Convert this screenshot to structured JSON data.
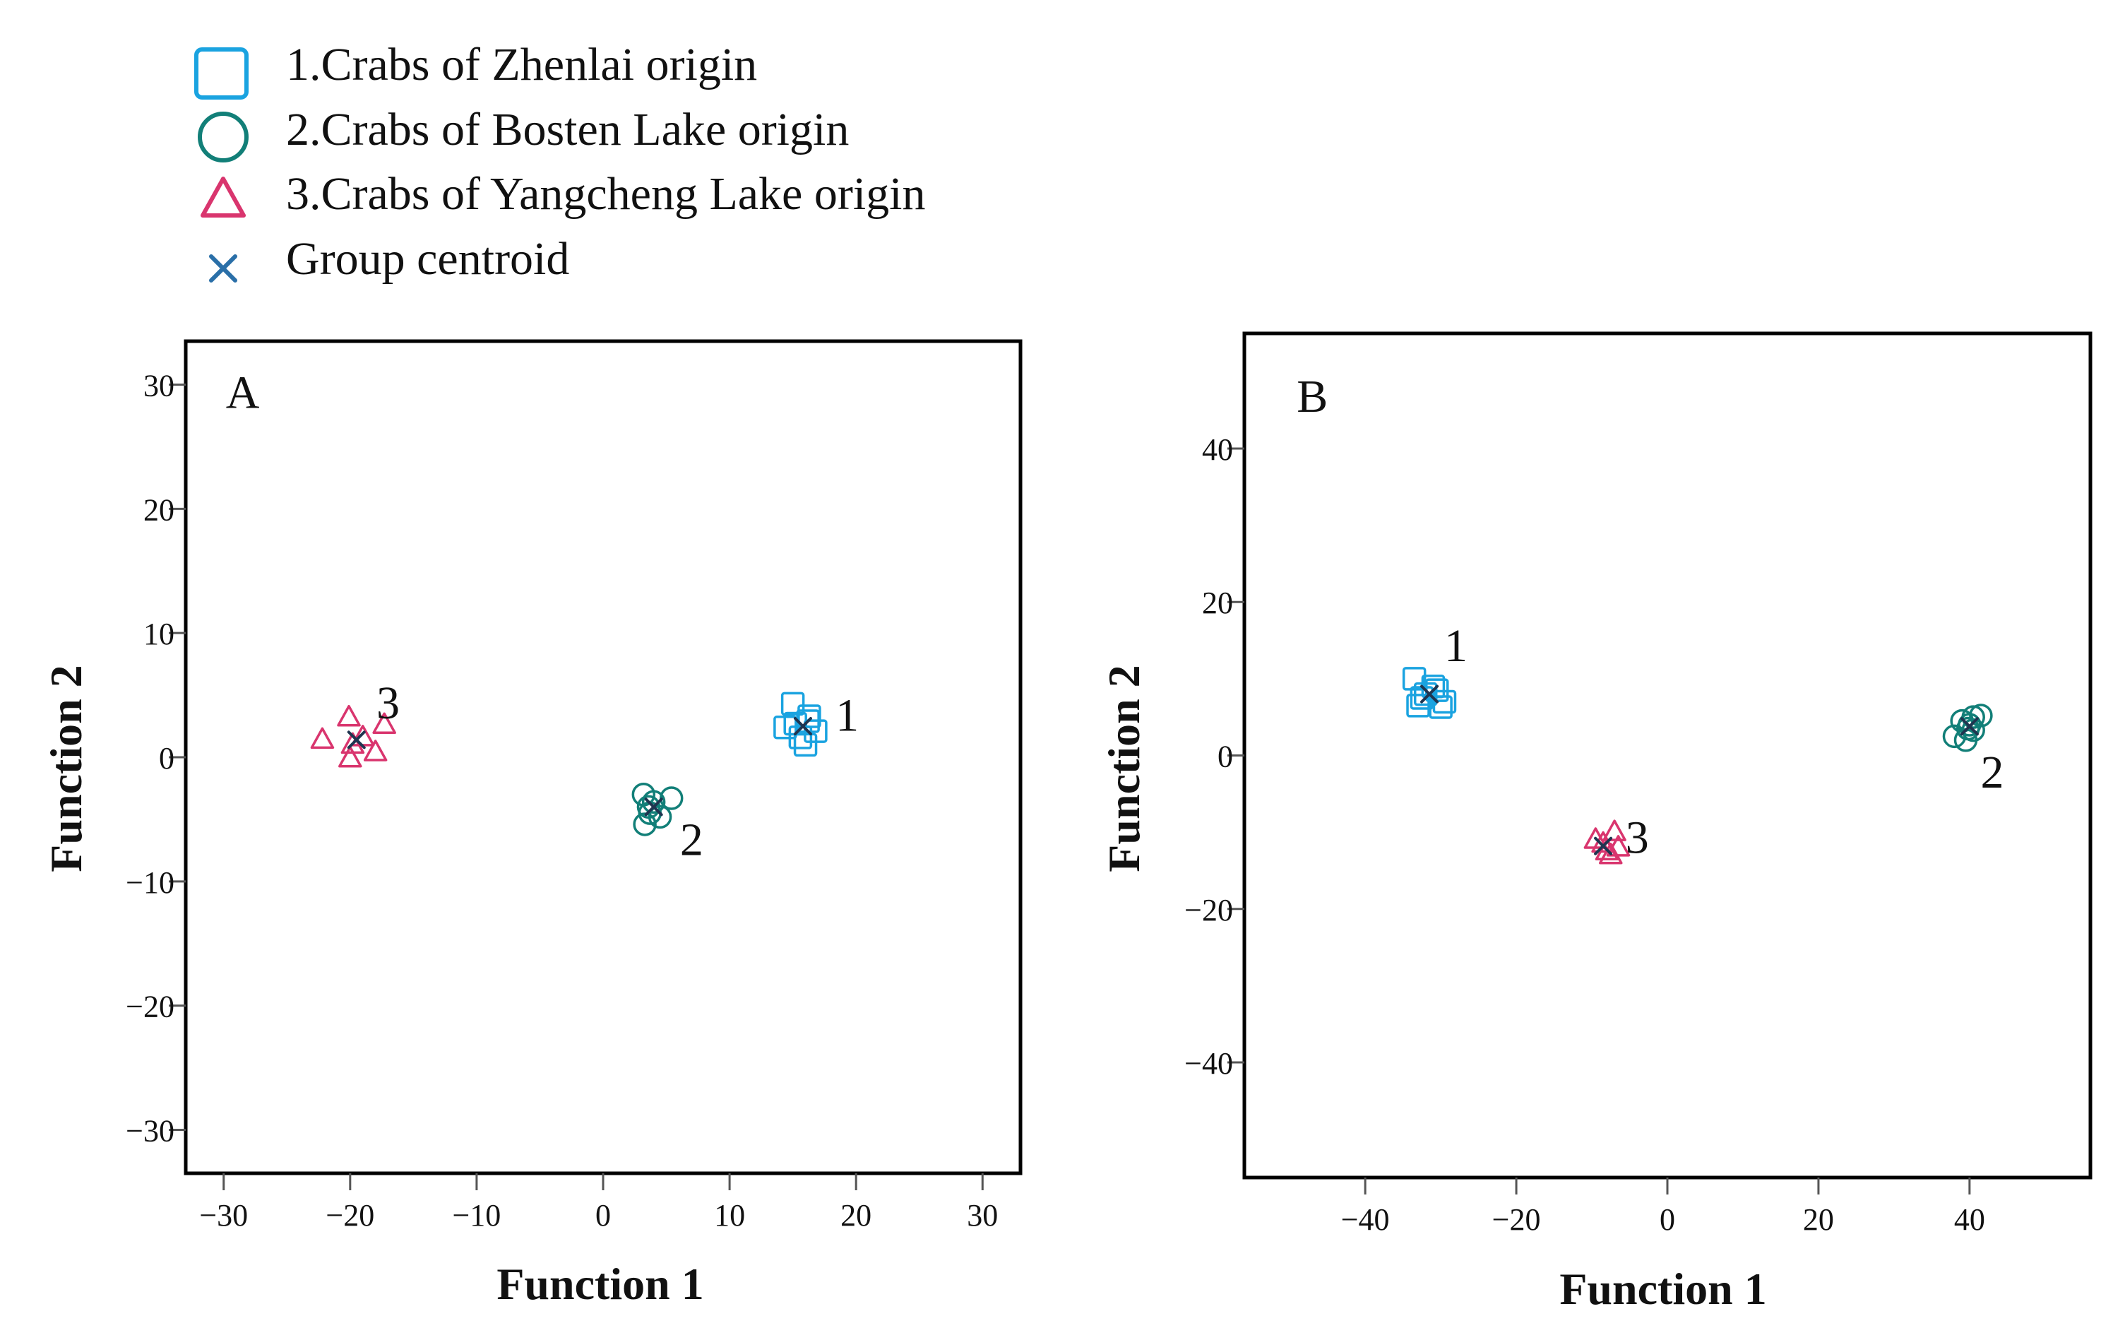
{
  "legend": {
    "items": [
      {
        "label": "1.Crabs of Zhenlai origin",
        "marker": "square-icon",
        "color": "#1aa3e0"
      },
      {
        "label": "2.Crabs of Bosten Lake origin",
        "marker": "circle-icon",
        "color": "#127f78"
      },
      {
        "label": "3.Crabs of Yangcheng Lake origin",
        "marker": "triangle-icon",
        "color": "#d9356e"
      },
      {
        "label": "Group centroid",
        "marker": "cross-icon",
        "color": "#2a6fa8"
      }
    ]
  },
  "chart_data": [
    {
      "type": "scatter",
      "panel": "A",
      "title": "",
      "xlabel": "Function 1",
      "ylabel": "Function 2",
      "xlim": [
        -33,
        33
      ],
      "ylim": [
        -33.5,
        33.5
      ],
      "xticks": [
        -30,
        -20,
        -10,
        0,
        10,
        20,
        30
      ],
      "yticks": [
        -30,
        -20,
        -10,
        0,
        10,
        20,
        30
      ],
      "xtick_labels": [
        "−30",
        "−20",
        "−10",
        "0",
        "10",
        "20",
        "30"
      ],
      "ytick_labels": [
        "−30",
        "−20",
        "−10",
        "0",
        "10",
        "20",
        "30"
      ],
      "series": [
        {
          "name": "1.Crabs of Zhenlai origin",
          "marker": "square",
          "color": "#1aa3e0",
          "points": [
            [
              15,
              4.3
            ],
            [
              16.3,
              3.3
            ],
            [
              14.4,
              2.4
            ],
            [
              16.8,
              2.1
            ],
            [
              15.6,
              1.6
            ],
            [
              16,
              1
            ],
            [
              15.2,
              2.7
            ],
            [
              16.2,
              2.9
            ]
          ]
        },
        {
          "name": "2.Crabs of Bosten Lake origin",
          "marker": "circle",
          "color": "#127f78",
          "points": [
            [
              3.2,
              -3
            ],
            [
              5.4,
              -3.3
            ],
            [
              3.6,
              -4
            ],
            [
              4.5,
              -4.8
            ],
            [
              3.3,
              -5.4
            ],
            [
              4,
              -3.6
            ],
            [
              3.7,
              -4.5
            ]
          ]
        },
        {
          "name": "3.Crabs of Yangcheng Lake origin",
          "marker": "triangle",
          "color": "#d9356e",
          "points": [
            [
              -20.1,
              3.2
            ],
            [
              -17.3,
              2.6
            ],
            [
              -22.2,
              1.4
            ],
            [
              -19,
              1.6
            ],
            [
              -18,
              0.4
            ],
            [
              -20,
              -0.1
            ],
            [
              -19.8,
              1
            ]
          ]
        }
      ],
      "centroids": [
        {
          "group": "1",
          "x": 15.8,
          "y": 2.5
        },
        {
          "group": "2",
          "x": 4,
          "y": -4
        },
        {
          "group": "3",
          "x": -19.5,
          "y": 1.4
        }
      ],
      "annotations": [
        {
          "text": "A",
          "x": -28.5,
          "y": 29.5
        },
        {
          "text": "1",
          "x": 19.3,
          "y": 3.5
        },
        {
          "text": "2",
          "x": 7,
          "y": -6.5
        },
        {
          "text": "3",
          "x": -17,
          "y": 4.5
        }
      ]
    },
    {
      "type": "scatter",
      "panel": "B",
      "title": "",
      "xlabel": "Function 1",
      "ylabel": "Function 2",
      "xlim": [
        -56,
        56
      ],
      "ylim": [
        -55,
        55
      ],
      "xticks": [
        -40,
        -20,
        0,
        20,
        40
      ],
      "yticks": [
        -40,
        -20,
        0,
        20,
        40
      ],
      "xtick_labels": [
        "−40",
        "−20",
        "0",
        "20",
        "40"
      ],
      "ytick_labels": [
        "−40",
        "−20",
        "0",
        "20",
        "40"
      ],
      "series": [
        {
          "name": "1.Crabs of Zhenlai origin",
          "marker": "square",
          "color": "#1aa3e0",
          "points": [
            [
              -33.5,
              10
            ],
            [
              -32,
              8
            ],
            [
              -33,
              6.5
            ],
            [
              -30.5,
              8.5
            ],
            [
              -29.5,
              7
            ],
            [
              -31,
              9
            ],
            [
              -32.5,
              7.5
            ],
            [
              -30,
              6.3
            ]
          ]
        },
        {
          "name": "2.Crabs of Bosten Lake origin",
          "marker": "circle",
          "color": "#127f78",
          "points": [
            [
              39,
              4.5
            ],
            [
              40.5,
              5
            ],
            [
              41.5,
              5.2
            ],
            [
              38,
              2.5
            ],
            [
              39.5,
              2
            ],
            [
              40.5,
              3.3
            ],
            [
              39.8,
              3.5
            ],
            [
              40,
              4
            ]
          ]
        },
        {
          "name": "3.Crabs of Yangcheng Lake origin",
          "marker": "triangle",
          "color": "#d9356e",
          "points": [
            [
              -9.5,
              -11
            ],
            [
              -8,
              -12.5
            ],
            [
              -7,
              -10
            ],
            [
              -7.5,
              -13
            ],
            [
              -8.5,
              -11.5
            ],
            [
              -6.5,
              -12
            ]
          ]
        }
      ],
      "centroids": [
        {
          "group": "1",
          "x": -31.5,
          "y": 8
        },
        {
          "group": "2",
          "x": 40,
          "y": 3.8
        },
        {
          "group": "3",
          "x": -8.5,
          "y": -11.8
        }
      ],
      "annotations": [
        {
          "text": "B",
          "x": -47,
          "y": 47
        },
        {
          "text": "1",
          "x": -28,
          "y": 14.5
        },
        {
          "text": "2",
          "x": 43,
          "y": -2
        },
        {
          "text": "3",
          "x": -4,
          "y": -10.5
        }
      ]
    }
  ]
}
